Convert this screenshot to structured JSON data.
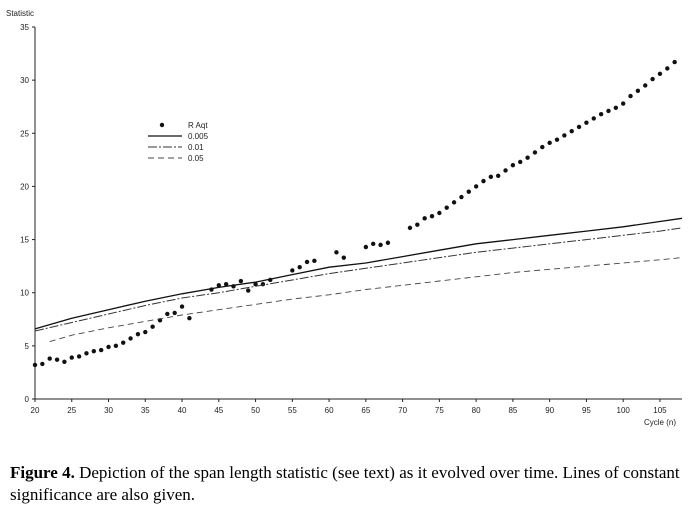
{
  "chart_data": {
    "type": "scatter",
    "ylabel": "Statistic",
    "xlabel": "Cycle (n)",
    "xlim": [
      20,
      108
    ],
    "ylim": [
      0,
      35
    ],
    "x_ticks": [
      20,
      25,
      30,
      35,
      40,
      45,
      50,
      55,
      60,
      65,
      70,
      75,
      80,
      85,
      90,
      95,
      100,
      105
    ],
    "y_ticks": [
      0,
      5,
      10,
      15,
      20,
      25,
      30,
      35
    ],
    "legend": {
      "position": "upper-left"
    },
    "series": [
      {
        "name": "R Aqt",
        "style": "dots",
        "points": [
          [
            20,
            3.2
          ],
          [
            21,
            3.3
          ],
          [
            22,
            3.8
          ],
          [
            23,
            3.7
          ],
          [
            24,
            3.5
          ],
          [
            25,
            3.9
          ],
          [
            26,
            4.0
          ],
          [
            27,
            4.3
          ],
          [
            28,
            4.5
          ],
          [
            29,
            4.6
          ],
          [
            30,
            4.9
          ],
          [
            31,
            5.0
          ],
          [
            32,
            5.3
          ],
          [
            33,
            5.7
          ],
          [
            34,
            6.1
          ],
          [
            35,
            6.3
          ],
          [
            36,
            6.8
          ],
          [
            37,
            7.4
          ],
          [
            38,
            8.0
          ],
          [
            39,
            8.1
          ],
          [
            40,
            8.7
          ],
          [
            41,
            7.6
          ],
          [
            44,
            10.3
          ],
          [
            45,
            10.7
          ],
          [
            46,
            10.8
          ],
          [
            47,
            10.6
          ],
          [
            48,
            11.1
          ],
          [
            49,
            10.2
          ],
          [
            50,
            10.8
          ],
          [
            51,
            10.8
          ],
          [
            52,
            11.2
          ],
          [
            55,
            12.1
          ],
          [
            56,
            12.4
          ],
          [
            57,
            12.9
          ],
          [
            58,
            13.0
          ],
          [
            61,
            13.8
          ],
          [
            62,
            13.3
          ],
          [
            65,
            14.3
          ],
          [
            66,
            14.6
          ],
          [
            67,
            14.5
          ],
          [
            68,
            14.7
          ],
          [
            71,
            16.1
          ],
          [
            72,
            16.4
          ],
          [
            73,
            17.0
          ],
          [
            74,
            17.2
          ],
          [
            75,
            17.5
          ],
          [
            76,
            18.0
          ],
          [
            77,
            18.5
          ],
          [
            78,
            19.0
          ],
          [
            79,
            19.5
          ],
          [
            80,
            20.0
          ],
          [
            81,
            20.5
          ],
          [
            82,
            20.9
          ],
          [
            83,
            21.0
          ],
          [
            84,
            21.5
          ],
          [
            85,
            22.0
          ],
          [
            86,
            22.3
          ],
          [
            87,
            22.7
          ],
          [
            88,
            23.2
          ],
          [
            89,
            23.7
          ],
          [
            90,
            24.1
          ],
          [
            91,
            24.4
          ],
          [
            92,
            24.8
          ],
          [
            93,
            25.2
          ],
          [
            94,
            25.6
          ],
          [
            95,
            26.0
          ],
          [
            96,
            26.4
          ],
          [
            97,
            26.8
          ],
          [
            98,
            27.1
          ],
          [
            99,
            27.4
          ],
          [
            100,
            27.8
          ],
          [
            101,
            28.5
          ],
          [
            102,
            29.0
          ],
          [
            103,
            29.5
          ],
          [
            104,
            30.1
          ],
          [
            105,
            30.6
          ],
          [
            106,
            31.1
          ],
          [
            107,
            31.7
          ]
        ]
      },
      {
        "name": "0.005",
        "style": "solid",
        "points": [
          [
            20,
            6.6
          ],
          [
            25,
            7.6
          ],
          [
            30,
            8.4
          ],
          [
            35,
            9.2
          ],
          [
            40,
            9.9
          ],
          [
            45,
            10.5
          ],
          [
            50,
            11.0
          ],
          [
            55,
            11.7
          ],
          [
            60,
            12.4
          ],
          [
            65,
            12.8
          ],
          [
            70,
            13.4
          ],
          [
            75,
            14.0
          ],
          [
            80,
            14.6
          ],
          [
            85,
            15.0
          ],
          [
            90,
            15.4
          ],
          [
            95,
            15.8
          ],
          [
            100,
            16.2
          ],
          [
            105,
            16.7
          ],
          [
            108,
            17.0
          ]
        ]
      },
      {
        "name": "0.01",
        "style": "dashdot",
        "points": [
          [
            20,
            6.4
          ],
          [
            25,
            7.2
          ],
          [
            30,
            8.0
          ],
          [
            35,
            8.8
          ],
          [
            40,
            9.5
          ],
          [
            45,
            10.0
          ],
          [
            50,
            10.6
          ],
          [
            55,
            11.2
          ],
          [
            60,
            11.8
          ],
          [
            65,
            12.3
          ],
          [
            70,
            12.8
          ],
          [
            75,
            13.3
          ],
          [
            80,
            13.8
          ],
          [
            85,
            14.2
          ],
          [
            90,
            14.6
          ],
          [
            95,
            15.0
          ],
          [
            100,
            15.4
          ],
          [
            105,
            15.8
          ],
          [
            108,
            16.1
          ]
        ]
      },
      {
        "name": "0.05",
        "style": "dashed",
        "points": [
          [
            22,
            5.4
          ],
          [
            25,
            6.0
          ],
          [
            30,
            6.7
          ],
          [
            35,
            7.3
          ],
          [
            40,
            7.9
          ],
          [
            45,
            8.4
          ],
          [
            50,
            8.9
          ],
          [
            55,
            9.4
          ],
          [
            60,
            9.8
          ],
          [
            65,
            10.3
          ],
          [
            70,
            10.7
          ],
          [
            75,
            11.1
          ],
          [
            80,
            11.5
          ],
          [
            85,
            11.9
          ],
          [
            90,
            12.2
          ],
          [
            95,
            12.5
          ],
          [
            100,
            12.8
          ],
          [
            105,
            13.1
          ],
          [
            108,
            13.3
          ]
        ]
      }
    ]
  },
  "caption": {
    "label": "Figure 4.",
    "text": " Depiction of the span length statistic (see text) as it evolved over time. Lines of constant significance are also given."
  }
}
